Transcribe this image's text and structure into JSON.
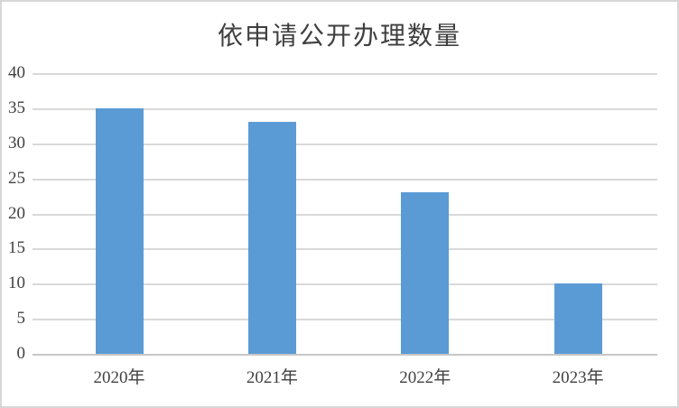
{
  "chart_data": {
    "type": "bar",
    "title": "依申请公开办理数量",
    "categories": [
      "2020年",
      "2021年",
      "2022年",
      "2023年"
    ],
    "values": [
      35,
      33,
      23,
      10
    ],
    "xlabel": "",
    "ylabel": "",
    "ylim": [
      0,
      40
    ],
    "ytick_step": 5,
    "yticks": [
      0,
      5,
      10,
      15,
      20,
      25,
      30,
      35,
      40
    ],
    "grid": true,
    "legend": "none",
    "bar_color": "#5b9bd5",
    "gridline_color": "#d9d9d9",
    "axis_line_color": "#c6c6c6",
    "tick_label_color": "#414141",
    "title_color": "#3f3f3f",
    "background_color": "#ffffff",
    "border_color": "#d7d7d7"
  }
}
